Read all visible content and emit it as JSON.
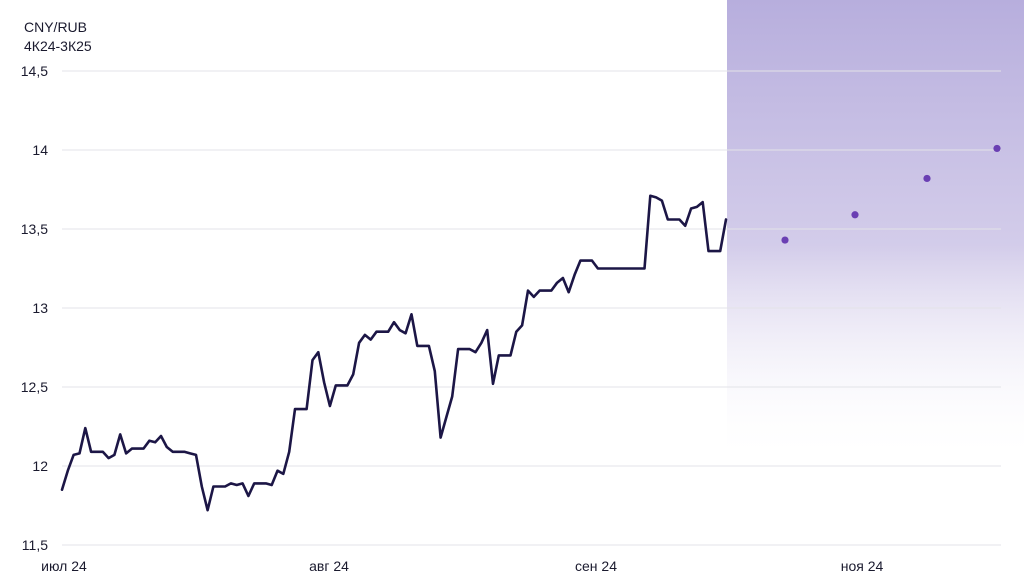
{
  "chart_data": {
    "type": "line",
    "title": "CNY/RUB",
    "subtitle": "4К24-3К25",
    "xlabel": "",
    "ylabel": "",
    "ylim": [
      11.5,
      14.5
    ],
    "y_ticks": [
      "14,5",
      "14",
      "13,5",
      "13",
      "12,5",
      "12",
      "11,5"
    ],
    "x_ticks": [
      "июл 24",
      "авг 24",
      "сен 24",
      "ноя 24"
    ],
    "grid": true,
    "legend": "none",
    "forecast_region_color": "#b7aedd",
    "colors": {
      "actual": "#1c1646",
      "forecast": "#6a3fb3",
      "grid": "#e3e3e8",
      "text": "#1a1a2e"
    },
    "series": [
      {
        "type": "line",
        "values": [
          11.85,
          11.97,
          12.07,
          12.08,
          12.24,
          12.09,
          12.09,
          12.09,
          12.05,
          12.07,
          12.2,
          12.08,
          12.11,
          12.11,
          12.11,
          12.16,
          12.15,
          12.19,
          12.12,
          12.09,
          12.09,
          12.09,
          12.08,
          12.07,
          11.87,
          11.72,
          11.87,
          11.87,
          11.87,
          11.89,
          11.88,
          11.89,
          11.81,
          11.89,
          11.89,
          11.89,
          11.88,
          11.97,
          11.95,
          12.09,
          12.36,
          12.36,
          12.36,
          12.67,
          12.72,
          12.53,
          12.38,
          12.51,
          12.51,
          12.51,
          12.58,
          12.78,
          12.83,
          12.8,
          12.85,
          12.85,
          12.85,
          12.91,
          12.86,
          12.84,
          12.96,
          12.76,
          12.76,
          12.76,
          12.6,
          12.18,
          12.31,
          12.44,
          12.74,
          12.74,
          12.74,
          12.72,
          12.78,
          12.86,
          12.52,
          12.7,
          12.7,
          12.7,
          12.85,
          12.89,
          13.11,
          13.07,
          13.11,
          13.11,
          13.11,
          13.16,
          13.19,
          13.1,
          13.21,
          13.3,
          13.3,
          13.3,
          13.25,
          13.25,
          13.25,
          13.25,
          13.25,
          13.25,
          13.25,
          13.25,
          13.25,
          13.71,
          13.7,
          13.68,
          13.56,
          13.56,
          13.56,
          13.52,
          13.63,
          13.64,
          13.67,
          13.36,
          13.36,
          13.36,
          13.56
        ]
      },
      {
        "type": "scatter",
        "values": [
          13.43,
          13.59,
          13.82,
          14.01
        ]
      }
    ]
  }
}
